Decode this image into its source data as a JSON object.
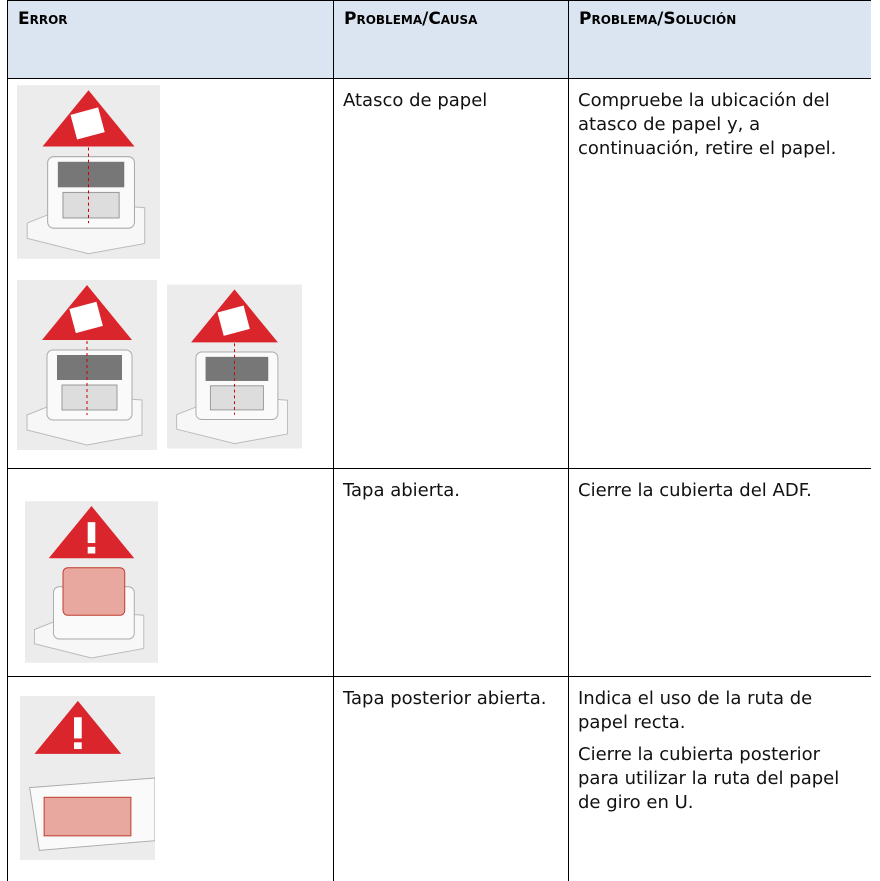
{
  "table": {
    "header": [
      "Error",
      "Problema/Causa",
      "Problema/Solución"
    ],
    "rows": [
      {
        "cause": "Atasco de papel",
        "solution": [
          "Compruebe la ubicación del atasco de papel y, a continuación, retire el papel."
        ]
      },
      {
        "cause": "Tapa abierta.",
        "solution": [
          "Cierre la cubierta del ADF."
        ]
      },
      {
        "cause": "Tapa posterior abierta.",
        "solution": [
          "Indica el uso de la ruta de papel recta.",
          "Cierre la cubierta posterior para utilizar la ruta del papel de giro en U."
        ]
      }
    ]
  }
}
